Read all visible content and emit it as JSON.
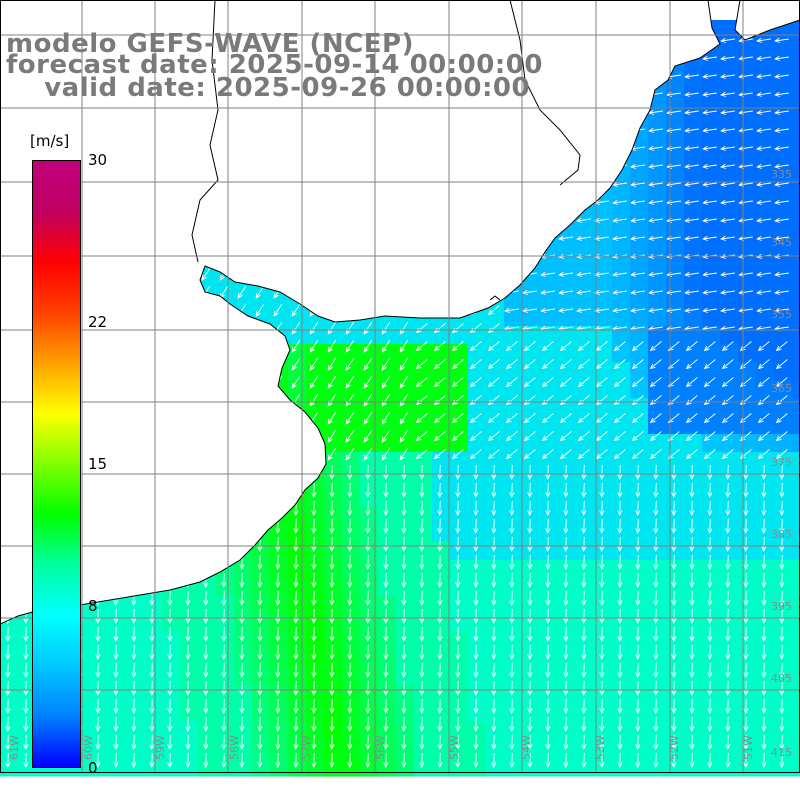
{
  "title": {
    "line1": "modelo GEFS-WAVE (NCEP)",
    "line2": "forecast date: 2025-09-14 00:00:00",
    "line3": "    valid date: 2025-09-26 00:00:00"
  },
  "colorbar": {
    "unit": "[m/s]",
    "ticks": [
      {
        "label": "30",
        "value": 30
      },
      {
        "label": "22",
        "value": 22
      },
      {
        "label": "15",
        "value": 15
      },
      {
        "label": "8",
        "value": 8
      },
      {
        "label": "0",
        "value": 0
      }
    ],
    "colors": [
      "#0000ff",
      "#0080ff",
      "#00c8ff",
      "#00ffff",
      "#00ffa0",
      "#00ff00",
      "#80ff00",
      "#ffff00",
      "#ffa000",
      "#ff4000",
      "#ff0000",
      "#c00060",
      "#c0007a"
    ]
  },
  "map": {
    "land_color": "#ffffff",
    "coast_color": "#000000",
    "grid_color": "#808080",
    "lat_labels": [
      "335",
      "345",
      "355",
      "365",
      "375",
      "385",
      "395",
      "405",
      "415"
    ],
    "lon_labels": [
      "61W",
      "60W",
      "59W",
      "58W",
      "57W",
      "56W",
      "55W",
      "54W",
      "53W",
      "52W",
      "51W"
    ]
  }
}
